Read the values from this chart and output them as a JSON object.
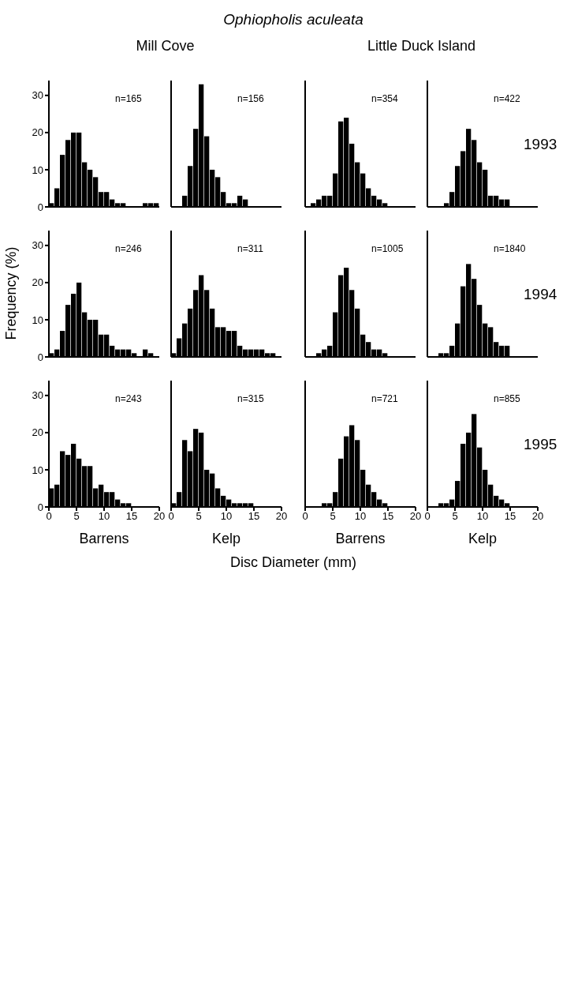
{
  "chart_data": [
    {
      "type": "other",
      "title": "Ophiopholis aculeata"
    },
    {
      "type": "histogram",
      "subtitle": "Mill Cove",
      "annotations": [
        "n=165"
      ],
      "bins": [
        0,
        1,
        2,
        3,
        4,
        5,
        6,
        7,
        8,
        9,
        10,
        11,
        12,
        13,
        14,
        15,
        16,
        17,
        18,
        19,
        20
      ],
      "values": [
        1,
        5,
        14,
        18,
        20,
        20,
        12,
        10,
        8,
        4,
        4,
        2,
        1,
        1,
        0,
        0,
        0,
        1,
        1,
        1
      ],
      "color": "#000000",
      "xlim": [
        0,
        20
      ],
      "xticks": [
        0,
        5,
        10,
        15,
        20
      ],
      "ylim": [
        0,
        34
      ],
      "yticks": [
        0,
        10,
        20,
        30
      ],
      "tick_labels": "y"
    },
    {
      "type": "histogram",
      "annotations": [
        "n=156"
      ],
      "bins": [
        0,
        1,
        2,
        3,
        4,
        5,
        6,
        7,
        8,
        9,
        10,
        11,
        12,
        13,
        14,
        15,
        16,
        17,
        18,
        19,
        20
      ],
      "values": [
        0,
        0,
        3,
        11,
        21,
        33,
        19,
        10,
        8,
        4,
        1,
        1,
        3,
        2,
        0,
        0,
        0,
        0,
        0,
        0
      ],
      "color": "#000000",
      "xlim": [
        0,
        20
      ],
      "xticks": [
        0,
        5,
        10,
        15,
        20
      ],
      "ylim": [
        0,
        34
      ],
      "yticks": [
        0,
        10,
        20,
        30
      ],
      "tick_labels": false
    },
    {
      "type": "histogram",
      "subtitle": "Little Duck Island",
      "annotations": [
        "n=354"
      ],
      "bins": [
        0,
        1,
        2,
        3,
        4,
        5,
        6,
        7,
        8,
        9,
        10,
        11,
        12,
        13,
        14,
        15,
        16,
        17,
        18,
        19,
        20
      ],
      "values": [
        0,
        1,
        2,
        3,
        3,
        9,
        23,
        24,
        17,
        12,
        9,
        5,
        3,
        2,
        1,
        0,
        0,
        0,
        0,
        0
      ],
      "color": "#000000",
      "xlim": [
        0,
        20
      ],
      "xticks": [
        0,
        5,
        10,
        15,
        20
      ],
      "ylim": [
        0,
        34
      ],
      "yticks": [
        0,
        10,
        20,
        30
      ],
      "tick_labels": false
    },
    {
      "type": "histogram",
      "annotations": [
        "n=422",
        "1993"
      ],
      "bins": [
        0,
        1,
        2,
        3,
        4,
        5,
        6,
        7,
        8,
        9,
        10,
        11,
        12,
        13,
        14,
        15,
        16,
        17,
        18,
        19,
        20
      ],
      "values": [
        0,
        0,
        0,
        1,
        4,
        11,
        15,
        21,
        18,
        12,
        10,
        3,
        3,
        2,
        2,
        0,
        0,
        0,
        0,
        0
      ],
      "color": "#000000",
      "xlim": [
        0,
        20
      ],
      "xticks": [
        0,
        5,
        10,
        15,
        20
      ],
      "ylim": [
        0,
        34
      ],
      "yticks": [
        0,
        10,
        20,
        30
      ],
      "tick_labels": false
    },
    {
      "type": "histogram",
      "ylabel": "Frequency (%)",
      "annotations": [
        "n=246"
      ],
      "bins": [
        0,
        1,
        2,
        3,
        4,
        5,
        6,
        7,
        8,
        9,
        10,
        11,
        12,
        13,
        14,
        15,
        16,
        17,
        18,
        19,
        20
      ],
      "values": [
        1,
        2,
        7,
        14,
        17,
        20,
        12,
        10,
        10,
        6,
        6,
        3,
        2,
        2,
        2,
        1,
        0,
        2,
        1,
        0
      ],
      "color": "#000000",
      "xlim": [
        0,
        20
      ],
      "xticks": [
        0,
        5,
        10,
        15,
        20
      ],
      "ylim": [
        0,
        34
      ],
      "yticks": [
        0,
        10,
        20,
        30
      ],
      "tick_labels": "y"
    },
    {
      "type": "histogram",
      "annotations": [
        "n=311"
      ],
      "bins": [
        0,
        1,
        2,
        3,
        4,
        5,
        6,
        7,
        8,
        9,
        10,
        11,
        12,
        13,
        14,
        15,
        16,
        17,
        18,
        19,
        20
      ],
      "values": [
        1,
        5,
        9,
        13,
        18,
        22,
        18,
        13,
        8,
        8,
        7,
        7,
        3,
        2,
        2,
        2,
        2,
        1,
        1,
        0
      ],
      "color": "#000000",
      "xlim": [
        0,
        20
      ],
      "xticks": [
        0,
        5,
        10,
        15,
        20
      ],
      "ylim": [
        0,
        34
      ],
      "yticks": [
        0,
        10,
        20,
        30
      ],
      "tick_labels": false
    },
    {
      "type": "histogram",
      "annotations": [
        "n=1005"
      ],
      "bins": [
        0,
        1,
        2,
        3,
        4,
        5,
        6,
        7,
        8,
        9,
        10,
        11,
        12,
        13,
        14,
        15,
        16,
        17,
        18,
        19,
        20
      ],
      "values": [
        0,
        0,
        1,
        2,
        3,
        12,
        22,
        24,
        18,
        13,
        6,
        4,
        2,
        2,
        1,
        0,
        0,
        0,
        0,
        0
      ],
      "color": "#000000",
      "xlim": [
        0,
        20
      ],
      "xticks": [
        0,
        5,
        10,
        15,
        20
      ],
      "ylim": [
        0,
        34
      ],
      "yticks": [
        0,
        10,
        20,
        30
      ],
      "tick_labels": false
    },
    {
      "type": "histogram",
      "annotations": [
        "n=1840",
        "1994"
      ],
      "bins": [
        0,
        1,
        2,
        3,
        4,
        5,
        6,
        7,
        8,
        9,
        10,
        11,
        12,
        13,
        14,
        15,
        16,
        17,
        18,
        19,
        20
      ],
      "values": [
        0,
        0,
        1,
        1,
        3,
        9,
        19,
        25,
        21,
        14,
        9,
        8,
        4,
        3,
        3,
        0,
        0,
        0,
        0,
        0
      ],
      "color": "#000000",
      "xlim": [
        0,
        20
      ],
      "xticks": [
        0,
        5,
        10,
        15,
        20
      ],
      "ylim": [
        0,
        34
      ],
      "yticks": [
        0,
        10,
        20,
        30
      ],
      "tick_labels": false
    },
    {
      "type": "histogram",
      "xlabel": "Barrens",
      "annotations": [
        "n=243",
        "Disc Diameter (mm)"
      ],
      "bins": [
        0,
        1,
        2,
        3,
        4,
        5,
        6,
        7,
        8,
        9,
        10,
        11,
        12,
        13,
        14,
        15,
        16,
        17,
        18,
        19,
        20
      ],
      "values": [
        5,
        6,
        15,
        14,
        17,
        13,
        11,
        11,
        5,
        6,
        4,
        4,
        2,
        1,
        1,
        0,
        0,
        0,
        0,
        0
      ],
      "color": "#000000",
      "xlim": [
        0,
        20
      ],
      "xticks": [
        0,
        5,
        10,
        15,
        20
      ],
      "ylim": [
        0,
        34
      ],
      "yticks": [
        0,
        10,
        20,
        30
      ]
    },
    {
      "type": "histogram",
      "xlabel": "Kelp",
      "annotations": [
        "n=315"
      ],
      "bins": [
        0,
        1,
        2,
        3,
        4,
        5,
        6,
        7,
        8,
        9,
        10,
        11,
        12,
        13,
        14,
        15,
        16,
        17,
        18,
        19,
        20
      ],
      "values": [
        1,
        4,
        18,
        15,
        21,
        20,
        10,
        9,
        5,
        3,
        2,
        1,
        1,
        1,
        1,
        0,
        0,
        0,
        0,
        0
      ],
      "color": "#000000",
      "xlim": [
        0,
        20
      ],
      "xticks": [
        0,
        5,
        10,
        15,
        20
      ],
      "ylim": [
        0,
        34
      ],
      "yticks": [
        0,
        10,
        20,
        30
      ],
      "tick_labels": "x"
    },
    {
      "type": "histogram",
      "xlabel": "Barrens",
      "annotations": [
        "n=721"
      ],
      "bins": [
        0,
        1,
        2,
        3,
        4,
        5,
        6,
        7,
        8,
        9,
        10,
        11,
        12,
        13,
        14,
        15,
        16,
        17,
        18,
        19,
        20
      ],
      "values": [
        0,
        0,
        0,
        1,
        1,
        4,
        13,
        19,
        22,
        18,
        10,
        6,
        4,
        2,
        1,
        0,
        0,
        0,
        0,
        0
      ],
      "color": "#000000",
      "xlim": [
        0,
        20
      ],
      "xticks": [
        0,
        5,
        10,
        15,
        20
      ],
      "ylim": [
        0,
        34
      ],
      "yticks": [
        0,
        10,
        20,
        30
      ],
      "tick_labels": "x"
    },
    {
      "type": "histogram",
      "xlabel": "Kelp",
      "annotations": [
        "n=855",
        "1995"
      ],
      "bins": [
        0,
        1,
        2,
        3,
        4,
        5,
        6,
        7,
        8,
        9,
        10,
        11,
        12,
        13,
        14,
        15,
        16,
        17,
        18,
        19,
        20
      ],
      "values": [
        0,
        0,
        1,
        1,
        2,
        7,
        17,
        20,
        25,
        16,
        10,
        6,
        3,
        2,
        1,
        0,
        0,
        0,
        0,
        0
      ],
      "color": "#000000",
      "xlim": [
        0,
        20
      ],
      "xticks": [
        0,
        5,
        10,
        15,
        20
      ],
      "ylim": [
        0,
        34
      ],
      "yticks": [
        0,
        10,
        20,
        30
      ],
      "tick_labels": "x"
    }
  ]
}
